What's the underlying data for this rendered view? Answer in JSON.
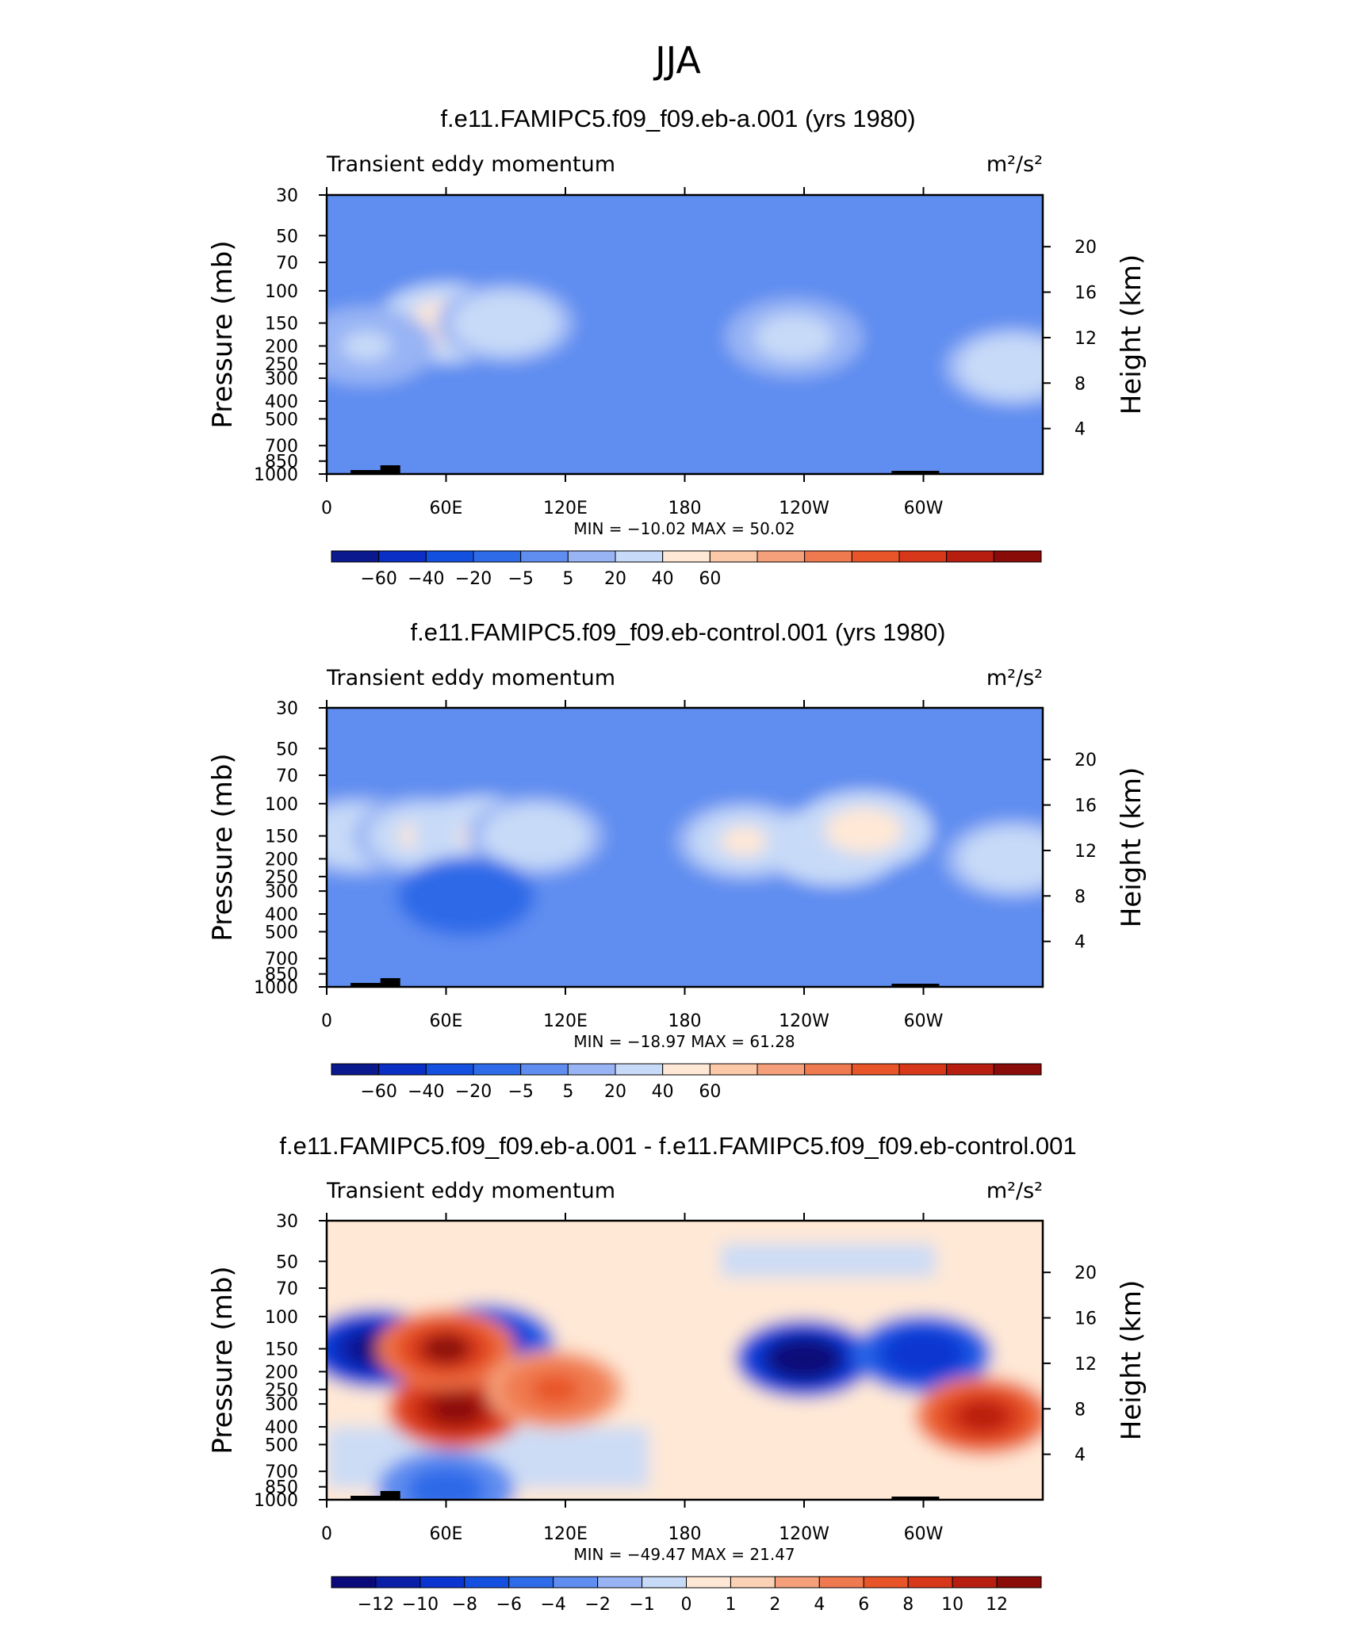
{
  "season": "JJA",
  "chart_data": [
    {
      "type": "heatmap",
      "title": "f.e11.FAMIPC5.f09_f09.eb-a.001 (yrs 1980)",
      "left_string": "Transient eddy momentum",
      "units": "m²/s²",
      "ylabel": "Pressure (mb)",
      "ylabel_right": "Height (km)",
      "y_ticks": [
        "30",
        "50",
        "70",
        "100",
        "150",
        "200",
        "250",
        "300",
        "400",
        "500",
        "700",
        "850",
        "1000"
      ],
      "y_ticks_right": [
        "20",
        "16",
        "12",
        "8",
        "4"
      ],
      "x_ticks": [
        "0",
        "60E",
        "120E",
        "180",
        "120W",
        "60W"
      ],
      "stats": "MIN = −10.02   MAX =   50.02",
      "colorbar_labels": [
        "−60",
        "−40",
        "−20",
        "−5",
        "5",
        "20",
        "40",
        "60"
      ],
      "colorbar_colors": [
        "#0a1a8e",
        "#0a2fc4",
        "#1450e0",
        "#2e6be8",
        "#5f8df0",
        "#98b4f4",
        "#c7daf8",
        "#ffe8d6",
        "#fbc8a8",
        "#f5a07a",
        "#f07a50",
        "#e85528",
        "#d8381a",
        "#b81e10",
        "#8a0c08"
      ],
      "jets": [
        {
          "lon": 60,
          "p": 150,
          "value": 50
        },
        {
          "lon": 20,
          "p": 200,
          "value": 22
        },
        {
          "lon": 90,
          "p": 150,
          "value": 35
        },
        {
          "lon": 235,
          "p": 180,
          "value": 26
        },
        {
          "lon": 345,
          "p": 260,
          "value": 32
        }
      ]
    },
    {
      "type": "heatmap",
      "title": "f.e11.FAMIPC5.f09_f09.eb-control.001 (yrs 1980)",
      "left_string": "Transient eddy momentum",
      "units": "m²/s²",
      "ylabel": "Pressure (mb)",
      "ylabel_right": "Height (km)",
      "y_ticks": [
        "30",
        "50",
        "70",
        "100",
        "150",
        "200",
        "250",
        "300",
        "400",
        "500",
        "700",
        "850",
        "1000"
      ],
      "y_ticks_right": [
        "20",
        "16",
        "12",
        "8",
        "4"
      ],
      "x_ticks": [
        "0",
        "60E",
        "120E",
        "180",
        "120W",
        "60W"
      ],
      "stats": "MIN = −18.97   MAX =   61.28",
      "colorbar_labels": [
        "−60",
        "−40",
        "−20",
        "−5",
        "5",
        "20",
        "40",
        "60"
      ],
      "colorbar_colors": [
        "#0a1a8e",
        "#0a2fc4",
        "#1450e0",
        "#2e6be8",
        "#5f8df0",
        "#98b4f4",
        "#c7daf8",
        "#ffe8d6",
        "#fbc8a8",
        "#f5a07a",
        "#f07a50",
        "#e85528",
        "#d8381a",
        "#b81e10",
        "#8a0c08"
      ],
      "jets": [
        {
          "lon": 15,
          "p": 150,
          "value": 32
        },
        {
          "lon": 48,
          "p": 150,
          "value": 45
        },
        {
          "lon": 78,
          "p": 150,
          "value": 48
        },
        {
          "lon": 105,
          "p": 150,
          "value": 35
        },
        {
          "lon": 210,
          "p": 160,
          "value": 40
        },
        {
          "lon": 255,
          "p": 170,
          "value": 48
        },
        {
          "lon": 270,
          "p": 140,
          "value": 58
        },
        {
          "lon": 345,
          "p": 200,
          "value": 35
        },
        {
          "lon": 70,
          "p": 320,
          "value": -18
        }
      ]
    },
    {
      "type": "heatmap",
      "title": "f.e11.FAMIPC5.f09_f09.eb-a.001 - f.e11.FAMIPC5.f09_f09.eb-control.001",
      "left_string": "Transient eddy momentum",
      "units": "m²/s²",
      "ylabel": "Pressure (mb)",
      "ylabel_right": "Height (km)",
      "y_ticks": [
        "30",
        "50",
        "70",
        "100",
        "150",
        "200",
        "250",
        "300",
        "400",
        "500",
        "700",
        "850",
        "1000"
      ],
      "y_ticks_right": [
        "20",
        "16",
        "12",
        "8",
        "4"
      ],
      "x_ticks": [
        "0",
        "60E",
        "120E",
        "180",
        "120W",
        "60W"
      ],
      "stats": "MIN = −49.47   MAX =   21.47",
      "colorbar_labels": [
        "−12",
        "−10",
        "−8",
        "−6",
        "−4",
        "−2",
        "−1",
        "0",
        "1",
        "2",
        "4",
        "6",
        "8",
        "10",
        "12"
      ],
      "colorbar_colors": [
        "#0a0a7a",
        "#0a1ea8",
        "#0a35d0",
        "#1450e0",
        "#2e6be8",
        "#5f8df0",
        "#98b4f4",
        "#c7daf8",
        "#ffe8d6",
        "#fbd2b6",
        "#f5a07a",
        "#f07a50",
        "#e85528",
        "#d8381a",
        "#b81e10",
        "#8a0c08"
      ],
      "jets": [
        {
          "lon": 25,
          "p": 150,
          "value": -14
        },
        {
          "lon": 80,
          "p": 140,
          "value": -12
        },
        {
          "lon": 240,
          "p": 170,
          "value": -16
        },
        {
          "lon": 300,
          "p": 160,
          "value": -10
        },
        {
          "lon": 65,
          "p": 320,
          "value": 14
        },
        {
          "lon": 330,
          "p": 350,
          "value": 10
        },
        {
          "lon": 60,
          "p": 150,
          "value": 12
        },
        {
          "lon": 115,
          "p": 250,
          "value": 7
        },
        {
          "lon": 60,
          "p": 880,
          "value": -6
        }
      ]
    }
  ]
}
